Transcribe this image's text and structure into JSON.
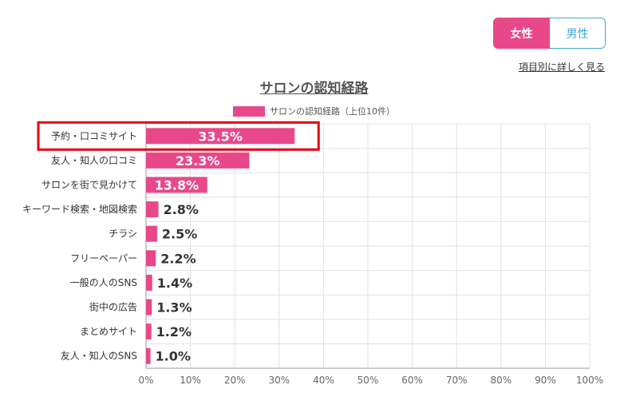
{
  "toggle": {
    "female": "女性",
    "male": "男性"
  },
  "detail_link": "項目別に詳しく見る",
  "colors": {
    "bar": "#e8488a",
    "highlight": "#e8000f",
    "male": "#3aa7d6"
  },
  "chart_data": {
    "type": "bar",
    "orientation": "horizontal",
    "title": "サロンの認知経路",
    "legend": "サロンの認知経路（上位10件）",
    "categories": [
      "予約・口コミサイト",
      "友人・知人の口コミ",
      "サロンを街で見かけて",
      "キーワード検索・地図検索",
      "チラシ",
      "フリーペーパー",
      "一般の人のSNS",
      "街中の広告",
      "まとめサイト",
      "友人・知人のSNS"
    ],
    "values": [
      33.5,
      23.3,
      13.8,
      2.8,
      2.5,
      2.2,
      1.4,
      1.3,
      1.2,
      1.0
    ],
    "value_labels": [
      "33.5%",
      "23.3%",
      "13.8%",
      "2.8%",
      "2.5%",
      "2.2%",
      "1.4%",
      "1.3%",
      "1.2%",
      "1.0%"
    ],
    "xlim": [
      0,
      100
    ],
    "x_ticks": [
      "0%",
      "10%",
      "20%",
      "30%",
      "40%",
      "50%",
      "60%",
      "70%",
      "80%",
      "90%",
      "100%"
    ],
    "grid": true,
    "highlighted_category": "予約・口コミサイト"
  }
}
